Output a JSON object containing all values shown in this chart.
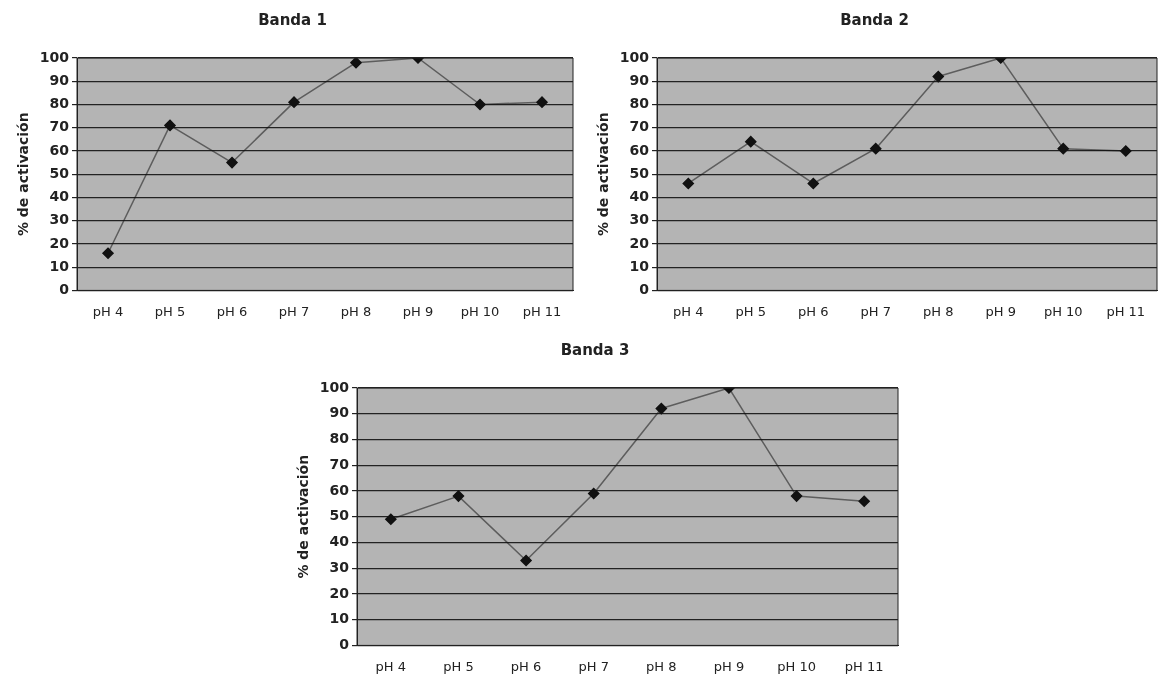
{
  "chart_data": [
    {
      "type": "line",
      "title": "Banda 1",
      "ylabel": "% de activación",
      "categories": [
        "pH 4",
        "pH 5",
        "pH 6",
        "pH 7",
        "pH 8",
        "pH 9",
        "pH 10",
        "pH 11"
      ],
      "series": [
        {
          "color": "#111111",
          "values": [
            16,
            71,
            55,
            81,
            98,
            100,
            80,
            81
          ]
        }
      ],
      "ylim": [
        0,
        100
      ],
      "yticks": [
        0,
        10,
        20,
        30,
        40,
        50,
        60,
        70,
        80,
        90,
        100
      ],
      "grid": "y",
      "marker": "diamond",
      "legend": false
    },
    {
      "type": "line",
      "title": "Banda 2",
      "ylabel": "% de activación",
      "categories": [
        "pH 4",
        "pH 5",
        "pH 6",
        "pH 7",
        "pH 8",
        "pH 9",
        "pH 10",
        "pH 11"
      ],
      "series": [
        {
          "color": "#111111",
          "values": [
            46,
            64,
            46,
            61,
            92,
            100,
            61,
            60
          ]
        }
      ],
      "ylim": [
        0,
        100
      ],
      "yticks": [
        0,
        10,
        20,
        30,
        40,
        50,
        60,
        70,
        80,
        90,
        100
      ],
      "grid": "y",
      "marker": "diamond",
      "legend": false
    },
    {
      "type": "line",
      "title": "Banda 3",
      "ylabel": "% de activación",
      "categories": [
        "pH 4",
        "pH 5",
        "pH 6",
        "pH 7",
        "pH 8",
        "pH 9",
        "pH 10",
        "pH 11"
      ],
      "series": [
        {
          "color": "#111111",
          "values": [
            49,
            58,
            33,
            59,
            92,
            100,
            58,
            56
          ]
        }
      ],
      "ylim": [
        0,
        100
      ],
      "yticks": [
        0,
        10,
        20,
        30,
        40,
        50,
        60,
        70,
        80,
        90,
        100
      ],
      "grid": "y",
      "marker": "diamond",
      "legend": false
    }
  ]
}
